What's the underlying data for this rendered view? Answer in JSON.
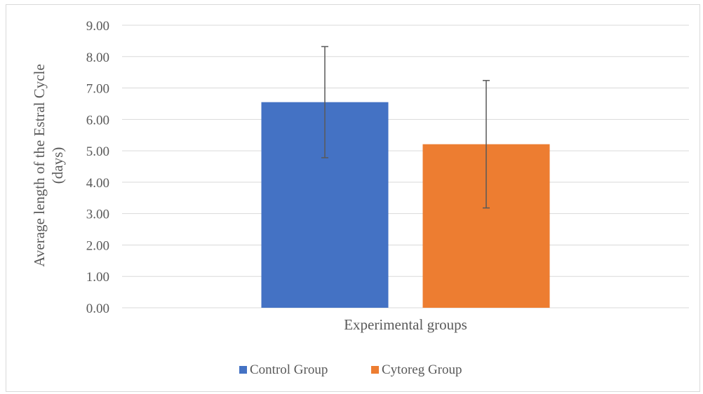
{
  "chart_data": {
    "type": "bar",
    "categories": [
      ""
    ],
    "series": [
      {
        "name": "Control Group",
        "values": [
          6.55
        ],
        "error": [
          1.77
        ],
        "color": "#4472c4"
      },
      {
        "name": "Cytoreg Group",
        "values": [
          5.21
        ],
        "error": [
          2.03
        ],
        "color": "#ed7d31"
      }
    ],
    "xlabel": "Experimental groups",
    "ylabel_lines": [
      "Average  length of the Estral Cycle",
      "(days)"
    ],
    "ylim": [
      0,
      9
    ],
    "yticks": [
      "0.00",
      "1.00",
      "2.00",
      "3.00",
      "4.00",
      "5.00",
      "6.00",
      "7.00",
      "8.00",
      "9.00"
    ],
    "grid": true,
    "legend_position": "bottom"
  }
}
